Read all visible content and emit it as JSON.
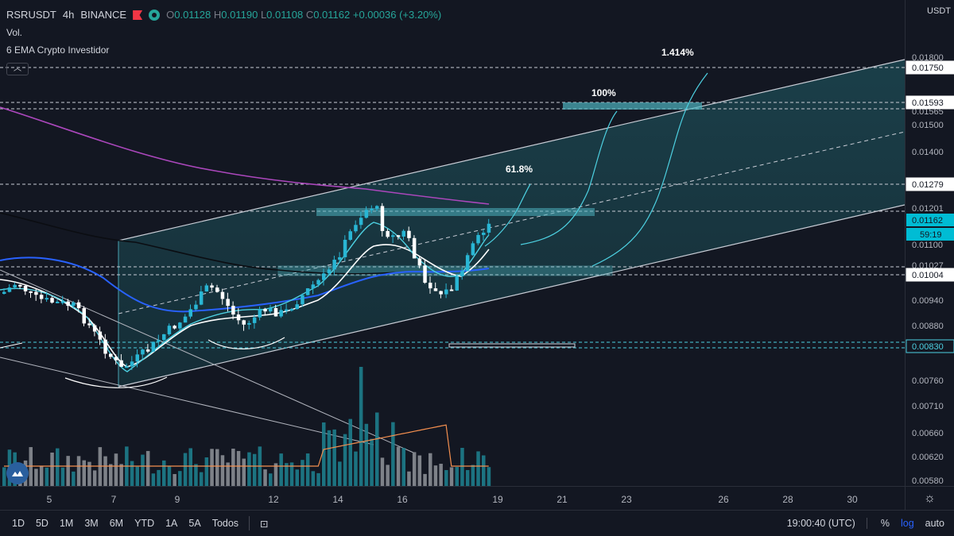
{
  "header": {
    "symbol": "RSRUSDT",
    "interval": "4h",
    "exchange": "BINANCE",
    "ohlc": {
      "o_label": "O",
      "o": "0.01128",
      "h_label": "H",
      "h": "0.01190",
      "l_label": "L",
      "l": "0.01108",
      "c_label": "C",
      "c": "0.01162",
      "change": "+0.00036 (+3.20%)"
    },
    "volume_label": "Vol.",
    "indicator_label": "6 EMA Crypto Investidor",
    "collapse_icon": "chevron-up-icon"
  },
  "price_axis": {
    "currency": "USDT",
    "ticks": [
      "0.01800",
      "0.01500",
      "0.01400",
      "0.01100",
      "0.00940",
      "0.00880",
      "0.00760",
      "0.00710",
      "0.00660",
      "0.00620",
      "0.00580"
    ],
    "level_labels": [
      "0.01750",
      "0.01593",
      "0.01279",
      "0.01004",
      "0.00830"
    ],
    "partial_labels": [
      "0.01565",
      "0.01201",
      "0.01027"
    ],
    "current_price": "0.01162",
    "countdown": "59:19"
  },
  "time_axis": {
    "ticks": [
      "5",
      "7",
      "9",
      "12",
      "14",
      "16",
      "19",
      "21",
      "23",
      "26",
      "28",
      "30"
    ]
  },
  "annotations": {
    "fib_618": "61.8%",
    "fib_100": "100%",
    "fib_1414": "1.414%"
  },
  "toolbar": {
    "ranges": [
      "1D",
      "5D",
      "1M",
      "3M",
      "6M",
      "YTD",
      "1A",
      "5A",
      "Todos"
    ],
    "clock": "19:00:40 (UTC)",
    "percent_label": "%",
    "log_label": "log",
    "auto_label": "auto"
  },
  "colors": {
    "background": "#131722",
    "up": "#26a69a",
    "down": "#ef5350",
    "candle_up": "#29b6d4",
    "candle_down": "#ffffff",
    "channel_fill": "#1f4a52",
    "ema_purple": "#ab47bc",
    "ema_blue": "#2962ff",
    "ema_white": "#ffffff",
    "ema_cyan": "#4dd0e1",
    "volume_ma": "#f48f4f",
    "current_price_bg": "#00bcd4"
  }
}
